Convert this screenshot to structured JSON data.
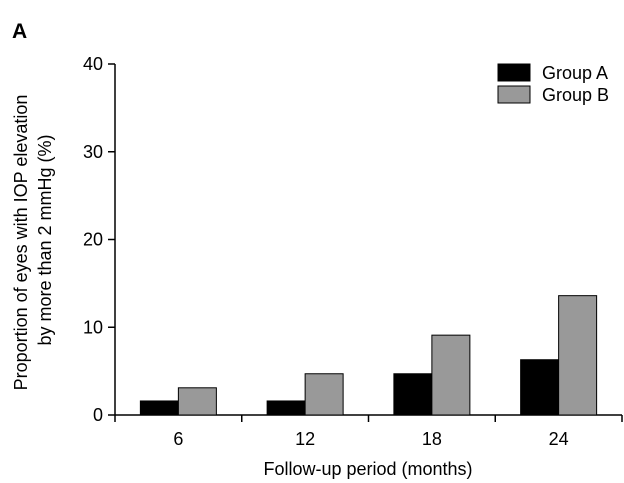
{
  "panel_label": "A",
  "chart_data": {
    "type": "bar",
    "categories": [
      "6",
      "12",
      "18",
      "24"
    ],
    "series": [
      {
        "name": "Group A",
        "values": [
          1.6,
          1.6,
          4.7,
          6.3
        ],
        "color": "#000000"
      },
      {
        "name": "Group B",
        "values": [
          3.1,
          4.7,
          9.1,
          13.6
        ],
        "color": "#999999"
      }
    ],
    "xlabel": "Follow-up period (months)",
    "ylabel_lines": [
      "Proportion of eyes with IOP elevation",
      "by more than 2 mmHg (%)"
    ],
    "ylim": [
      0,
      40
    ],
    "yticks": [
      "0",
      "10",
      "20",
      "30",
      "40"
    ],
    "grid": false,
    "legend_position": "top-right"
  }
}
